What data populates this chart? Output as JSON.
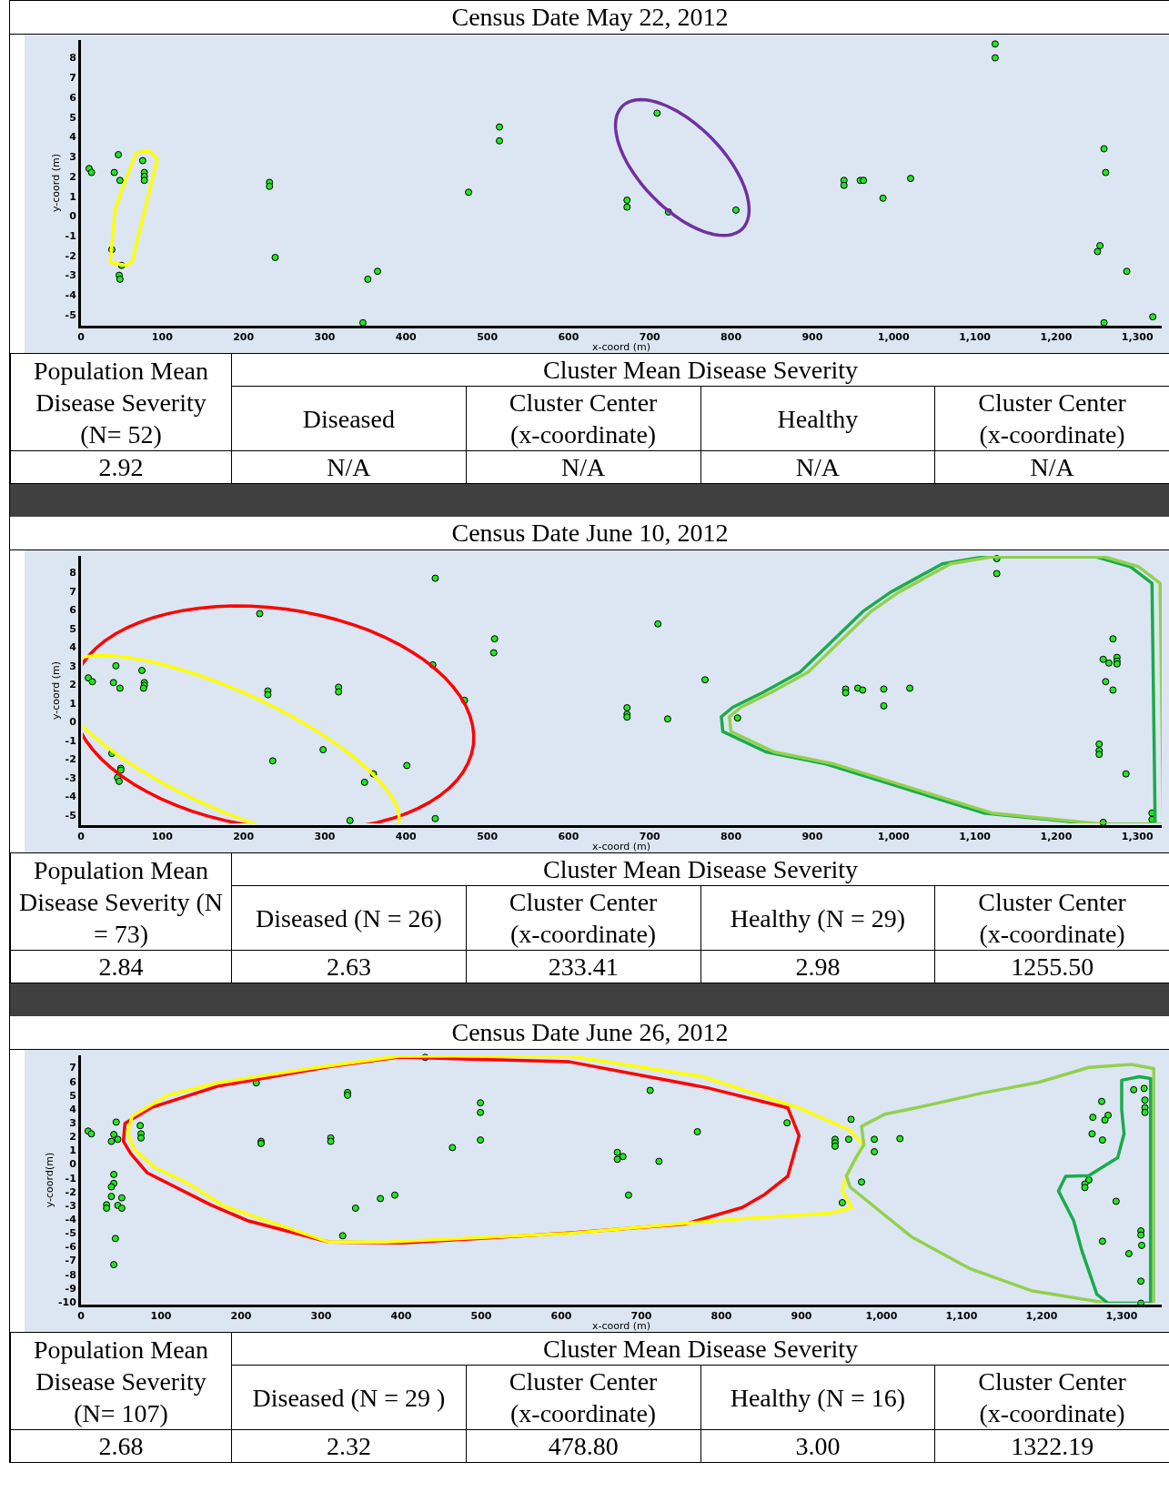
{
  "chart_data": [
    {
      "type": "scatter",
      "title": "Census Date May 22, 2012",
      "xlabel": "x-coord (m)",
      "ylabel": "y-coord (m)",
      "marker": "circle",
      "grid": false,
      "xlim": [
        0,
        1330
      ],
      "xticks": [
        0,
        100,
        200,
        300,
        400,
        500,
        600,
        700,
        800,
        900,
        {
          "value": 1000,
          "label": "1,000"
        },
        {
          "value": 1100,
          "label": "1,100"
        },
        {
          "value": 1200,
          "label": "1,200"
        },
        {
          "value": 1300,
          "label": "1,300"
        }
      ],
      "ylim": [
        -5.55,
        8.9
      ],
      "yticks": [
        -5,
        -4,
        -3,
        -2,
        -1,
        0,
        1,
        2,
        3,
        4,
        5,
        6,
        7,
        8
      ],
      "series": [
        {
          "color": "#22e622",
          "x": [
            10,
            13,
            46,
            41,
            48,
            76,
            78,
            78,
            78,
            38,
            50,
            47,
            48,
            232,
            232,
            239,
            353,
            365,
            347,
            477,
            515,
            515,
            1125,
            1125,
            709,
            672,
            672,
            723,
            806,
            939,
            939,
            959,
            963,
            987,
            1021,
            1259,
            1261,
            1254,
            1251,
            1287,
            1259,
            1319
          ],
          "values": [
            2.4,
            2.2,
            3.1,
            2.2,
            1.8,
            2.8,
            2.2,
            2.0,
            1.8,
            -1.7,
            -2.5,
            -3.0,
            -3.2,
            1.7,
            1.5,
            -2.1,
            -3.2,
            -2.8,
            -5.4,
            1.2,
            4.5,
            3.8,
            8.7,
            8.0,
            5.2,
            0.8,
            0.45,
            0.2,
            0.3,
            1.8,
            1.55,
            1.8,
            1.8,
            0.9,
            1.9,
            3.4,
            2.2,
            -1.5,
            -1.8,
            -2.8,
            -5.4,
            -5.1
          ]
        }
      ]
    },
    {
      "type": "other",
      "annotations": [
        "Population Mean Disease Severity (N= 52)",
        "Cluster Mean Disease Severity",
        "Diseased",
        "Cluster Center (x-coordinate)",
        "Healthy",
        "Cluster Center (x-coordinate)",
        "2.92",
        "N/A",
        "N/A",
        "N/A",
        "N/A"
      ]
    },
    {
      "type": "scatter",
      "title": "Census Date June 10, 2012",
      "xlabel": "x-coord (m)",
      "ylabel": "y-coord (m)",
      "marker": "circle",
      "grid": false,
      "xlim": [
        0,
        1330
      ],
      "xticks": [
        0,
        100,
        200,
        300,
        400,
        500,
        600,
        700,
        800,
        900,
        {
          "value": 1000,
          "label": "1,000"
        },
        {
          "value": 1100,
          "label": "1,100"
        },
        {
          "value": 1200,
          "label": "1,200"
        },
        {
          "value": 1300,
          "label": "1,300"
        }
      ],
      "ylim": [
        -5.55,
        8.9
      ],
      "yticks": [
        -5,
        -4,
        -3,
        -2,
        -1,
        0,
        1,
        2,
        3,
        4,
        5,
        6,
        7,
        8
      ],
      "series": [
        {
          "color": "#22e622",
          "x": [
            9,
            14,
            43,
            40,
            48,
            75,
            78,
            78,
            77,
            220,
            230,
            230,
            317,
            317,
            436,
            433,
            472,
            509,
            508,
            38,
            49,
            49,
            45,
            47,
            236,
            298,
            401,
            360,
            349,
            331,
            436,
            1127,
            1127,
            710,
            768,
            672,
            672,
            672,
            722,
            808,
            941,
            941,
            956,
            962,
            988,
            988,
            1020,
            1270,
            1258,
            1275,
            1275,
            1275,
            1265,
            1261,
            1270,
            1253,
            1253,
            1253,
            1286,
            1258,
            1318,
            1318
          ],
          "values": [
            2.35,
            2.15,
            3.0,
            2.1,
            1.8,
            2.75,
            2.1,
            1.95,
            1.8,
            5.8,
            1.65,
            1.45,
            1.85,
            1.6,
            7.7,
            3.05,
            1.15,
            4.45,
            3.7,
            -1.7,
            -2.5,
            -2.6,
            -3.0,
            -3.2,
            -2.1,
            -1.5,
            -2.35,
            -2.8,
            -3.25,
            -5.3,
            -5.2,
            8.75,
            7.95,
            5.25,
            2.25,
            0.75,
            0.4,
            0.25,
            0.15,
            0.2,
            1.75,
            1.55,
            1.8,
            1.7,
            1.75,
            0.85,
            1.8,
            4.45,
            3.35,
            3.45,
            3.25,
            3.1,
            3.15,
            2.15,
            1.7,
            -1.2,
            -1.55,
            -1.75,
            -2.8,
            -5.4,
            -4.9,
            -5.25
          ]
        }
      ]
    },
    {
      "type": "other",
      "annotations": [
        "Population Mean Disease Severity (N = 73)",
        "Cluster Mean Disease Severity",
        "Diseased (N = 26)",
        "Cluster Center (x-coordinate)",
        "Healthy (N = 29)",
        "Cluster Center (x-coordinate)",
        "2.84",
        "2.63",
        "233.41",
        "2.98",
        "1255.50"
      ]
    },
    {
      "type": "scatter",
      "title": "Census Date June 26, 2012",
      "xlabel": "x-coord (m)",
      "ylabel": "y-coord(m)",
      "marker": "circle",
      "grid": false,
      "xlim": [
        0,
        1350
      ],
      "xticks": [
        0,
        100,
        200,
        300,
        400,
        500,
        600,
        700,
        800,
        900,
        {
          "value": 1000,
          "label": "1,000"
        },
        {
          "value": 1100,
          "label": "1,100"
        },
        {
          "value": 1200,
          "label": "1,200"
        },
        {
          "value": 1300,
          "label": "1,300"
        }
      ],
      "ylim": [
        -10.2,
        7.9
      ],
      "yticks": [
        -10,
        -9,
        -8,
        -7,
        -6,
        -5,
        -4,
        -3,
        -2,
        -1,
        0,
        1,
        2,
        3,
        4,
        5,
        6,
        7
      ],
      "series": [
        {
          "color": "#22e622",
          "x": [
            9,
            13,
            44,
            41,
            38,
            46,
            74,
            75,
            75,
            219,
            225,
            225,
            312,
            312,
            333,
            333,
            430,
            499,
            499,
            499,
            464,
            41,
            41,
            38,
            38,
            51,
            32,
            46,
            32,
            51,
            43,
            41,
            392,
            374,
            343,
            327,
            711,
            770,
            670,
            677,
            670,
            722,
            684,
            882,
            962,
            942,
            959,
            942,
            942,
            991,
            1023,
            991,
            975,
            951,
            1275,
            1315,
            1328,
            1329,
            1329,
            1329,
            1264,
            1283,
            1279,
            1263,
            1276,
            1259,
            1254,
            1254,
            1293,
            1324,
            1324,
            1325,
            1276,
            1309,
            1324,
            1324
          ],
          "values": [
            2.4,
            2.2,
            3.05,
            2.15,
            1.65,
            1.8,
            2.8,
            2.2,
            1.9,
            5.9,
            1.65,
            1.5,
            1.9,
            1.65,
            5.2,
            5.0,
            7.75,
            4.45,
            3.75,
            1.75,
            1.2,
            -0.75,
            -1.4,
            -1.65,
            -2.35,
            -2.45,
            -2.95,
            -3.0,
            -3.2,
            -3.2,
            -5.4,
            -7.3,
            -2.25,
            -2.5,
            -3.2,
            -5.2,
            5.35,
            2.35,
            0.85,
            0.55,
            0.35,
            0.2,
            -2.25,
            3.0,
            3.25,
            1.8,
            1.8,
            1.55,
            1.3,
            1.8,
            1.85,
            0.9,
            -1.3,
            -2.8,
            4.55,
            5.4,
            5.5,
            4.65,
            4.1,
            3.75,
            3.4,
            3.55,
            3.2,
            2.2,
            1.75,
            -1.15,
            -1.45,
            -1.7,
            -2.7,
            -4.85,
            -5.15,
            -5.9,
            -5.6,
            -6.5,
            -8.5,
            -10.1
          ]
        }
      ]
    },
    {
      "type": "other",
      "annotations": [
        "Population Mean Disease Severity (N= 107)",
        "Cluster Mean Disease Severity",
        "Diseased (N = 29 )",
        "Cluster Center (x-coordinate)",
        "Healthy (N = 16)",
        "Cluster Center (x-coordinate)",
        "2.68",
        "2.32",
        "478.80",
        "3.00",
        "1322.19"
      ]
    }
  ]
}
